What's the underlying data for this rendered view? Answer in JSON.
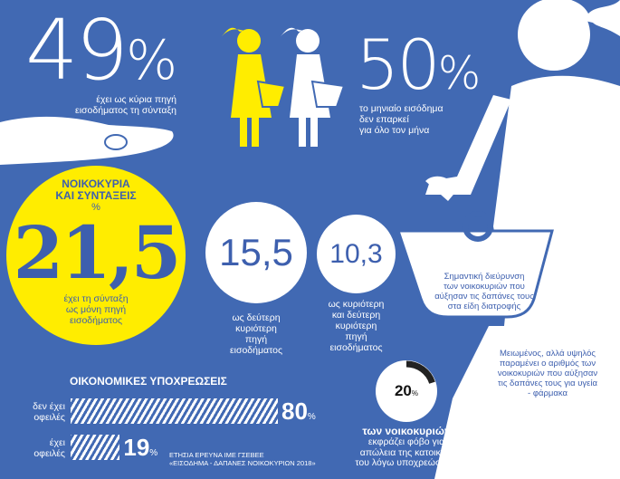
{
  "colors": {
    "background": "#4169b3",
    "yellow": "#ffed00",
    "white": "#ffffff",
    "dark": "#222222"
  },
  "stat49": {
    "value": "49",
    "unit": "%",
    "text1": "έχει ως κύρια πηγή",
    "text2": "εισοδήματος τη σύνταξη",
    "icon": "hand-icon"
  },
  "stat50": {
    "value": "50",
    "unit": "%",
    "text1": "το μηνιαίο εισόδημα",
    "text2": "δεν επαρκεί",
    "text3": "για όλο τον μήνα",
    "icon": "women-with-baskets-icon",
    "fraction_highlighted": 0.5
  },
  "households": {
    "title1": "ΝΟΙΚΟΚΥΡΙΑ",
    "title2": "ΚΑΙ ΣΥΝΤΑΞΕΙΣ",
    "unit": "%",
    "value": "21,5",
    "text1": "έχει τη σύνταξη",
    "text2": "ως μόνη πηγή",
    "text3": "εισοδήματος"
  },
  "second": {
    "value": "15,5",
    "text1": "ως δεύτερη",
    "text2": "κυριότερη",
    "text3": "πηγή",
    "text4": "εισοδήματος"
  },
  "both": {
    "value": "10,3",
    "text1": "ως κυριότερη",
    "text2": "και δεύτερη",
    "text3": "κυριότερη",
    "text4": "πηγή",
    "text5": "εισοδήματος"
  },
  "food": {
    "l1": "Σημαντική διεύρυνση",
    "l2": "των νοικοκυριών που",
    "l3": "αύξησαν τις δαπάνες τους",
    "l4": "στα είδη διατροφής"
  },
  "health": {
    "l1": "Μειωμένος, αλλά υψηλός",
    "l2": "παραμένει ο αριθμός των",
    "l3": "νοικοκυριών που αύξησαν",
    "l4": "τις δαπάνες τους για υγεία",
    "l5": "- φάρμακα"
  },
  "obligations": {
    "title": "ΟΙΚΟΝΟΜΙΚΕΣ ΥΠΟΧΡΕΩΣΕΙΣ",
    "rows": [
      {
        "l1": "δεν έχει",
        "l2": "οφειλές",
        "value": 80,
        "label": "80",
        "unit": "%"
      },
      {
        "l1": "έχει",
        "l2": "οφειλές",
        "value": 19,
        "label": "19",
        "unit": "%"
      }
    ]
  },
  "source": {
    "l1": "ΕΤΗΣΙΑ ΕΡΕΥΝΑ ΙΜΕ ΓΣΕΒΕΕ",
    "l2": "«ΕΙΣΟΔΗΜΑ - ΔΑΠΑΝΕΣ ΝΟΙΚΟΚΥΡΙΩΝ 2018»"
  },
  "fear": {
    "value": "20",
    "unit": "%",
    "fraction": 0.2,
    "l1": "των νοικοκυριών",
    "l2": "εκφράζει φόβο για",
    "l3": "απώλεια της κατοικίας",
    "l4": "του λόγω υποχρεώσεων"
  }
}
